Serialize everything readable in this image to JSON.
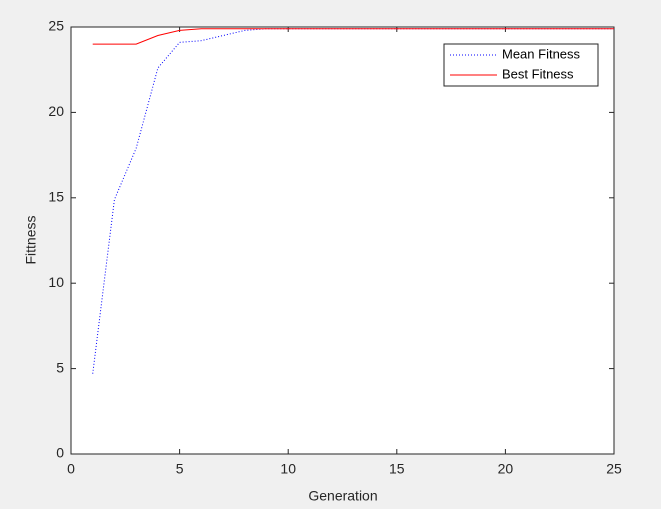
{
  "chart_data": {
    "type": "line",
    "xlabel": "Generation",
    "ylabel": "Fittness",
    "x": [
      1,
      2,
      3,
      4,
      5,
      6,
      7,
      8,
      9,
      10,
      11,
      12,
      13,
      14,
      15,
      16,
      17,
      18,
      19,
      20,
      21,
      22,
      23,
      24,
      25
    ],
    "series": [
      {
        "name": "Mean Fitness",
        "color": "#0000ff",
        "line_style": "dotted",
        "values": [
          4.7,
          14.9,
          17.9,
          22.6,
          24.1,
          24.2,
          24.5,
          24.8,
          24.9,
          24.9,
          24.9,
          24.9,
          24.9,
          24.9,
          24.9,
          24.9,
          24.9,
          24.9,
          24.9,
          24.9,
          24.9,
          24.9,
          24.9,
          24.9,
          24.9
        ]
      },
      {
        "name": "Best Fitness",
        "color": "#ff0000",
        "line_style": "solid",
        "values": [
          24,
          24,
          24,
          24.5,
          24.8,
          24.9,
          24.9,
          24.9,
          24.9,
          24.9,
          24.9,
          24.9,
          24.9,
          24.9,
          24.9,
          24.9,
          24.9,
          24.9,
          24.9,
          24.9,
          24.9,
          24.9,
          24.9,
          24.9,
          24.9
        ]
      }
    ],
    "xlim": [
      0,
      25
    ],
    "xticks": [
      0,
      5,
      10,
      15,
      20,
      25
    ],
    "ylim": [
      0,
      25
    ],
    "yticks": [
      0,
      5,
      10,
      15,
      20,
      25
    ],
    "legend": "northeast"
  }
}
